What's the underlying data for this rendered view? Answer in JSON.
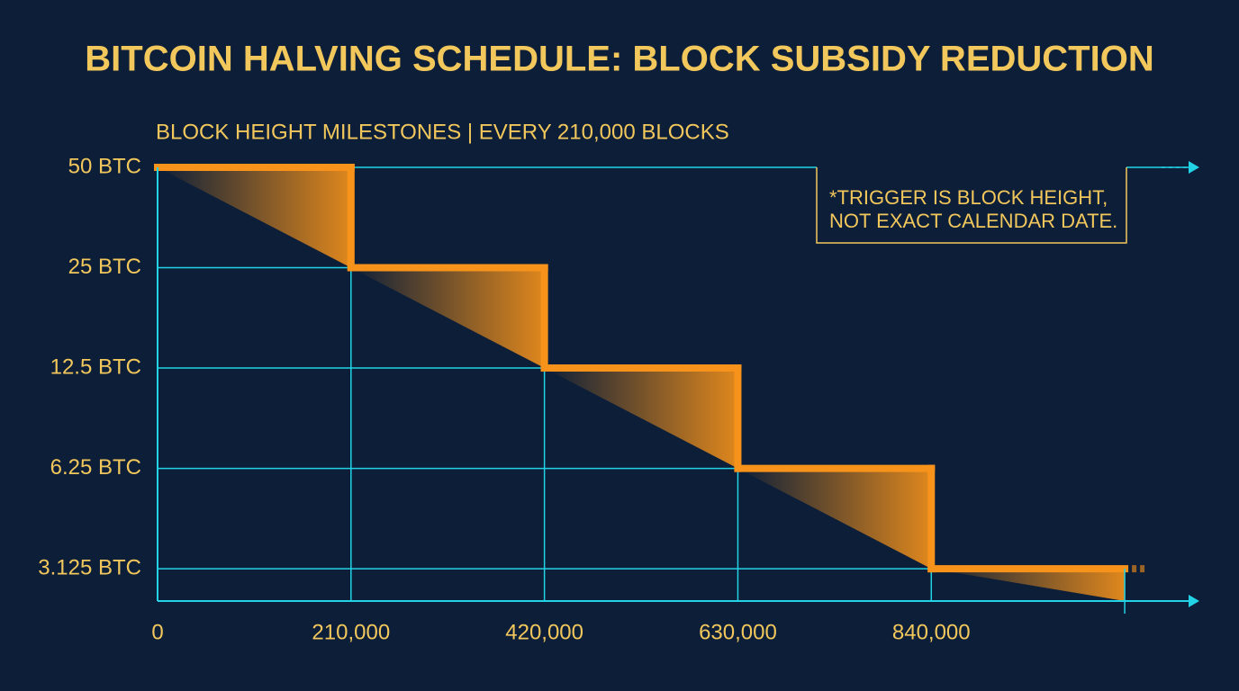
{
  "chart_data": {
    "type": "step",
    "title": "BITCOIN HALVING SCHEDULE: BLOCK SUBSIDY REDUCTION",
    "subtitle": "BLOCK HEIGHT MILESTONES | EVERY 210,000 BLOCKS",
    "annotation": [
      "*TRIGGER IS BLOCK HEIGHT,",
      "NOT EXACT CALENDAR DATE."
    ],
    "x": [
      0,
      210000,
      420000,
      630000,
      840000,
      1050000
    ],
    "values": [
      50,
      25,
      12.5,
      6.25,
      3.125,
      3.125
    ],
    "color": "#f7931a",
    "axis_color": "#22d3e6",
    "text_color": "#f2c75c",
    "xlim": [
      0,
      1090000
    ],
    "ylim": [
      2.5,
      50
    ],
    "yscale": "log",
    "grid": true,
    "xticks": [
      0,
      {
        "value": 210000,
        "label": "210,000"
      },
      {
        "value": 420000,
        "label": "420,000"
      },
      {
        "value": 630000,
        "label": "630,000"
      },
      {
        "value": 840000,
        "label": "840,000"
      }
    ],
    "yticks": [
      {
        "value": 50,
        "label": "50 BTC"
      },
      {
        "value": 25,
        "label": "25 BTC"
      },
      {
        "value": 12.5,
        "label": "12.5 BTC"
      },
      {
        "value": 6.25,
        "label": "6.25 BTC"
      },
      {
        "value": 3.125,
        "label": "3.125 BTC"
      }
    ]
  }
}
